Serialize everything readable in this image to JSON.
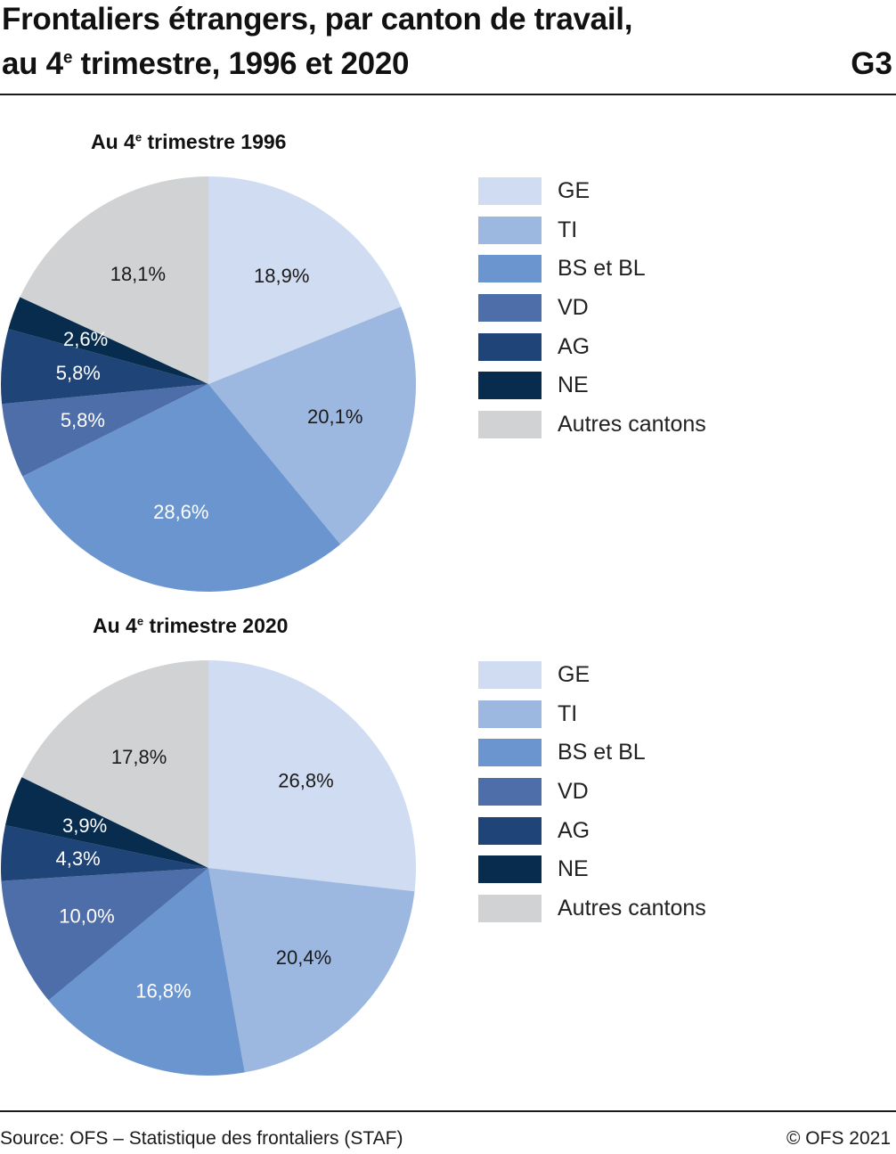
{
  "header": {
    "title_line1": "Frontaliers étrangers, par canton de travail,",
    "title_line2_pre": "au 4",
    "title_line2_sup": "e",
    "title_line2_post": " trimestre, 1996 et 2020",
    "chart_id": "G3"
  },
  "footer": {
    "source": "Source: OFS – Statistique des frontaliers (STAF)",
    "copyright": "© OFS 2021"
  },
  "colors": {
    "GE": "#cfdcf1",
    "TI": "#9db8e0",
    "BS et BL": "#6a95cf",
    "VD": "#4d6ea8",
    "AG": "#1f4478",
    "NE": "#082c4e",
    "Autres cantons": "#d0d2d3",
    "label_dark": "#1a1a1a",
    "label_light": "#ffffff"
  },
  "chart_data": [
    {
      "type": "pie",
      "title_pre": "Au 4",
      "title_sup": "e",
      "title_post": " trimestre 1996",
      "categories": [
        "GE",
        "TI",
        "BS et BL",
        "VD",
        "AG",
        "NE",
        "Autres cantons"
      ],
      "values": [
        18.9,
        20.1,
        28.6,
        5.8,
        5.8,
        2.6,
        18.1
      ],
      "value_labels": [
        "18,9%",
        "20,1%",
        "28,6%",
        "5,8%",
        "5,8%",
        "2,6%",
        "18,1%"
      ],
      "unit": "%",
      "legend_position": "right",
      "legend": [
        "GE",
        "TI",
        "BS et BL",
        "VD",
        "AG",
        "NE",
        "Autres cantons"
      ]
    },
    {
      "type": "pie",
      "title_pre": "Au 4",
      "title_sup": "e",
      "title_post": " trimestre 2020",
      "categories": [
        "GE",
        "TI",
        "BS et BL",
        "VD",
        "AG",
        "NE",
        "Autres cantons"
      ],
      "values": [
        26.8,
        20.4,
        16.8,
        10.0,
        4.3,
        3.9,
        17.8
      ],
      "value_labels": [
        "26,8%",
        "20,4%",
        "16,8%",
        "10,0%",
        "4,3%",
        "3,9%",
        "17,8%"
      ],
      "unit": "%",
      "legend_position": "right",
      "legend": [
        "GE",
        "TI",
        "BS et BL",
        "VD",
        "AG",
        "NE",
        "Autres cantons"
      ]
    }
  ]
}
